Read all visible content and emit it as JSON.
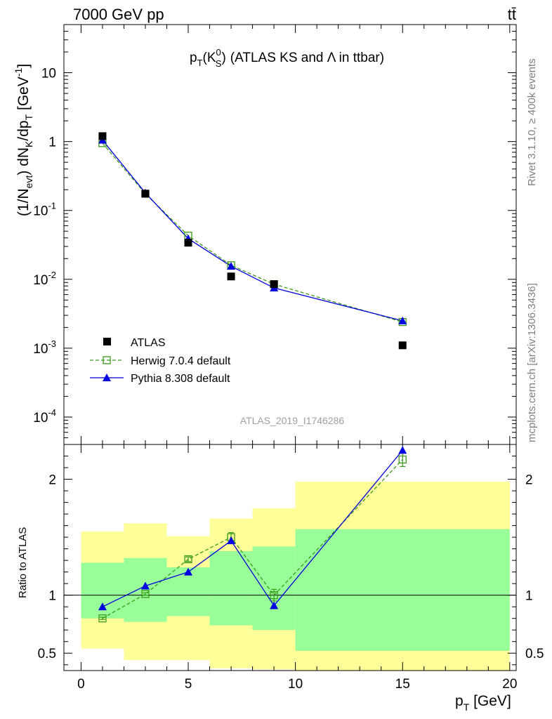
{
  "header": {
    "left": "7000 GeV pp",
    "right": "tt̄"
  },
  "side_labels": {
    "rivet": "Rivet 3.1.10, ≥ 400k events",
    "mcplots": "mcplots.cern.ch [arXiv:1306.3436]"
  },
  "watermark": "ATLAS_2019_I1746286",
  "chart_data": [
    {
      "type": "scatter",
      "title_main": "p",
      "title_main_sub": "T",
      "title_paren_open": "(K",
      "title_paren_sup": "0",
      "title_paren_sub": "S",
      "title_paren_close": ")",
      "title_rest": "(ATLAS KS and Λ in ttbar)",
      "ylabel": "(1/N",
      "ylabel_sub1": "evt",
      "ylabel_mid": ") dN",
      "ylabel_sub2": "K",
      "ylabel_mid2": "/dp",
      "ylabel_sub3": "T",
      "ylabel_unit": " [GeV",
      "ylabel_sup": "-1",
      "ylabel_close": "]",
      "yscale": "log",
      "ylim": [
        4e-05,
        50
      ],
      "xlim": [
        -0.8,
        20.3
      ],
      "yticks": [
        {
          "m": "10",
          "e": "-4",
          "v": 0.0001
        },
        {
          "m": "10",
          "e": "-3",
          "v": 0.001
        },
        {
          "m": "10",
          "e": "-2",
          "v": 0.01
        },
        {
          "m": "10",
          "e": "-1",
          "v": 0.1
        },
        {
          "m": "1",
          "e": "",
          "v": 1
        },
        {
          "m": "10",
          "e": "",
          "v": 10
        }
      ],
      "legend_position": "bottom-left",
      "series": [
        {
          "name": "ATLAS",
          "color": "#000000",
          "marker": "filled-square",
          "x": [
            1,
            3,
            5,
            7,
            9,
            15
          ],
          "y": [
            1.2,
            0.175,
            0.034,
            0.011,
            0.0085,
            0.0011
          ]
        },
        {
          "name": "Herwig 7.0.4 default",
          "color": "#3a9a1a",
          "marker": "open-square",
          "dash": true,
          "x": [
            1,
            3,
            5,
            7,
            9,
            15
          ],
          "y": [
            0.95,
            0.175,
            0.043,
            0.016,
            0.0085,
            0.0024
          ]
        },
        {
          "name": "Pythia 8.308 default",
          "color": "#0000e0",
          "marker": "filled-triangle",
          "x": [
            1,
            3,
            5,
            7,
            9,
            15
          ],
          "y": [
            1.05,
            0.18,
            0.039,
            0.0155,
            0.0075,
            0.0025
          ]
        }
      ]
    },
    {
      "type": "scatter",
      "ylabel": "Ratio to ATLAS",
      "xlabel": "p",
      "xlabel_sub": "T",
      "xlabel_unit": " [GeV]",
      "ylim": [
        0.35,
        2.3
      ],
      "xlim": [
        -0.8,
        20.3
      ],
      "xticks": [
        0,
        5,
        10,
        15,
        20
      ],
      "yticks": [
        0.5,
        1,
        2
      ],
      "ytick_labels": [
        "0.5",
        "1",
        "2"
      ],
      "bands_yellow": [
        {
          "x0": 0,
          "x1": 2,
          "lo": 0.54,
          "hi": 1.55
        },
        {
          "x0": 2,
          "x1": 4,
          "lo": 0.44,
          "hi": 1.62
        },
        {
          "x0": 4,
          "x1": 6,
          "lo": 0.44,
          "hi": 1.51
        },
        {
          "x0": 6,
          "x1": 8,
          "lo": 0.37,
          "hi": 1.66
        },
        {
          "x0": 8,
          "x1": 10,
          "lo": 0.36,
          "hi": 1.75
        },
        {
          "x0": 10,
          "x1": 20,
          "lo": 0.33,
          "hi": 1.98
        }
      ],
      "bands_green": [
        {
          "x0": 0,
          "x1": 2,
          "lo": 0.8,
          "hi": 1.28
        },
        {
          "x0": 2,
          "x1": 4,
          "lo": 0.77,
          "hi": 1.32
        },
        {
          "x0": 4,
          "x1": 6,
          "lo": 0.82,
          "hi": 1.24
        },
        {
          "x0": 6,
          "x1": 8,
          "lo": 0.74,
          "hi": 1.38
        },
        {
          "x0": 8,
          "x1": 10,
          "lo": 0.7,
          "hi": 1.42
        },
        {
          "x0": 10,
          "x1": 20,
          "lo": 0.52,
          "hi": 1.57
        }
      ],
      "series": [
        {
          "name": "Herwig 7.0.4 default",
          "color": "#3a9a1a",
          "marker": "open-square",
          "dash": true,
          "x": [
            1,
            3,
            5,
            7,
            9,
            15
          ],
          "y": [
            0.8,
            1.01,
            1.31,
            1.5,
            1.0,
            2.17
          ],
          "err": [
            0.01,
            0.01,
            0.02,
            0.04,
            0.05,
            0.06
          ]
        },
        {
          "name": "Pythia 8.308 default",
          "color": "#0000e0",
          "marker": "filled-triangle",
          "x": [
            1,
            3,
            5,
            7,
            9,
            15
          ],
          "y": [
            0.9,
            1.08,
            1.2,
            1.47,
            0.91,
            2.25
          ],
          "err": [
            0,
            0,
            0,
            0,
            0,
            0
          ]
        }
      ]
    }
  ]
}
